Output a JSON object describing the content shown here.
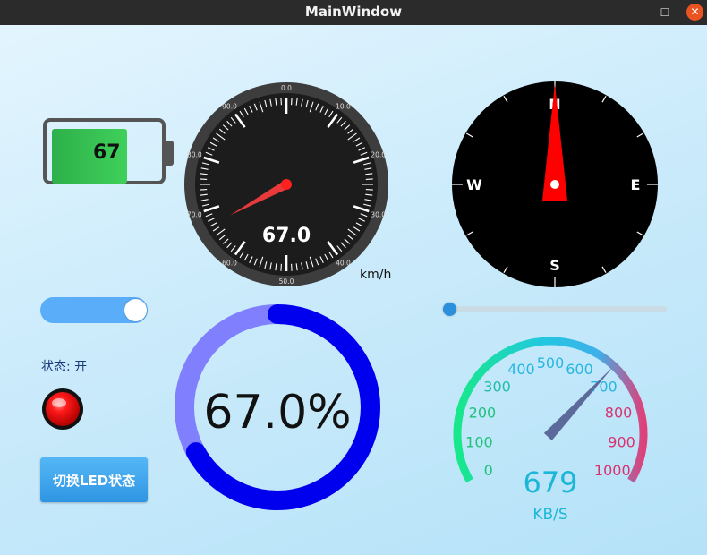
{
  "window": {
    "title": "MainWindow",
    "minimize_glyph": "–",
    "maximize_glyph": "☐",
    "close_glyph": "✕"
  },
  "battery": {
    "value": 67,
    "label": "67"
  },
  "speedometer": {
    "value": 67.0,
    "min": 0,
    "max": 100,
    "value_label": "67.0",
    "unit": "km/h",
    "tick_labels": [
      "0.0",
      "10.0",
      "20.0",
      "30.0",
      "40.0",
      "50.0",
      "60.0",
      "70.0",
      "80.0",
      "90.0"
    ]
  },
  "compass": {
    "heading_deg": 0,
    "north": "N",
    "east": "E",
    "south": "S",
    "west": "W"
  },
  "toggle": {
    "on": true
  },
  "status": {
    "text": "状态: 开"
  },
  "led": {
    "on": true,
    "color": "#e30000"
  },
  "led_button": {
    "label": "切换LED状态"
  },
  "slider": {
    "value": 0
  },
  "ring_progress": {
    "value": 67.0,
    "label": "67.0%",
    "bg_color": "#8080ff",
    "fg_color": "#0000ee"
  },
  "network_gauge": {
    "value": 679,
    "min": 0,
    "max": 1000,
    "value_label": "679",
    "unit": "KB/S",
    "tick_labels": [
      "0",
      "100",
      "200",
      "300",
      "400",
      "500",
      "600",
      "700",
      "800",
      "900",
      "1000"
    ]
  },
  "colors": {
    "accent": "#2b8fdc",
    "toggle_on": "#5aaef9",
    "battery_fill": "#3fd05a"
  }
}
